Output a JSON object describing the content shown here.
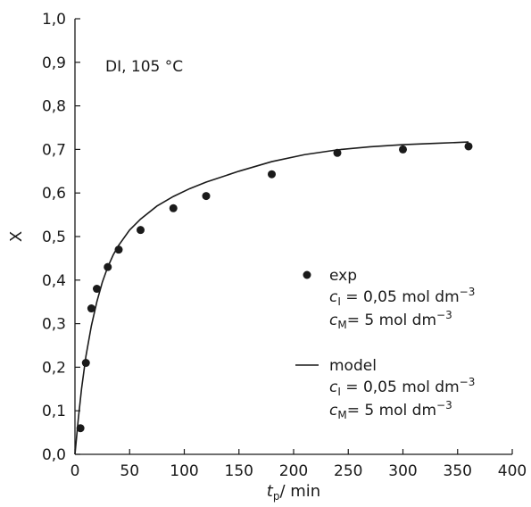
{
  "chart_data": {
    "type": "scatter",
    "title": "",
    "annotation": "DI, 105 °C",
    "xlabel": {
      "main": "t",
      "sub": "p",
      "unit": "/ min"
    },
    "ylabel": "X",
    "xlim": [
      0,
      400
    ],
    "ylim": [
      0.0,
      1.0
    ],
    "x_ticks": [
      0,
      50,
      100,
      150,
      200,
      250,
      300,
      350,
      400
    ],
    "x_tick_labels": [
      "0",
      "50",
      "100",
      "150",
      "200",
      "250",
      "300",
      "350",
      "400"
    ],
    "y_ticks": [
      0.0,
      0.1,
      0.2,
      0.3,
      0.4,
      0.5,
      0.6,
      0.7,
      0.8,
      0.9,
      1.0
    ],
    "y_tick_labels": [
      "0,0",
      "0,1",
      "0,2",
      "0,3",
      "0,4",
      "0,5",
      "0,6",
      "0,7",
      "0,8",
      "0,9",
      "1,0"
    ],
    "grid": false,
    "series": [
      {
        "name": "exp",
        "kind": "points",
        "color": "#1a1a1a",
        "x": [
          5,
          10,
          15,
          20,
          30,
          40,
          60,
          90,
          120,
          180,
          240,
          300,
          360
        ],
        "y": [
          0.06,
          0.21,
          0.335,
          0.38,
          0.43,
          0.47,
          0.515,
          0.565,
          0.593,
          0.643,
          0.692,
          0.7,
          0.707
        ]
      },
      {
        "name": "model",
        "kind": "line",
        "color": "#1a1a1a",
        "x": [
          0,
          3,
          6,
          10,
          15,
          20,
          25,
          30,
          35,
          40,
          50,
          60,
          75,
          90,
          105,
          120,
          150,
          180,
          210,
          240,
          270,
          300,
          330,
          360
        ],
        "y": [
          0.0,
          0.08,
          0.15,
          0.225,
          0.295,
          0.35,
          0.395,
          0.43,
          0.458,
          0.48,
          0.515,
          0.54,
          0.57,
          0.592,
          0.61,
          0.625,
          0.65,
          0.672,
          0.688,
          0.699,
          0.706,
          0.711,
          0.714,
          0.717
        ]
      }
    ],
    "legend": {
      "placement": "bottom-right",
      "entries": [
        {
          "label": "exp",
          "marker": "circle",
          "lines": [
            {
              "sym": "c",
              "sub": "I",
              "text": " = 0,05 mol dm",
              "sup": "−3"
            },
            {
              "sym": "c",
              "sub": "M",
              "text": "= 5 mol dm",
              "sup": "−3"
            }
          ]
        },
        {
          "label": "model",
          "marker": "line",
          "lines": [
            {
              "sym": "c",
              "sub": "I",
              "text": " = 0,05 mol dm",
              "sup": "−3"
            },
            {
              "sym": "c",
              "sub": "M",
              "text": "= 5 mol dm",
              "sup": "−3"
            }
          ]
        }
      ]
    }
  }
}
